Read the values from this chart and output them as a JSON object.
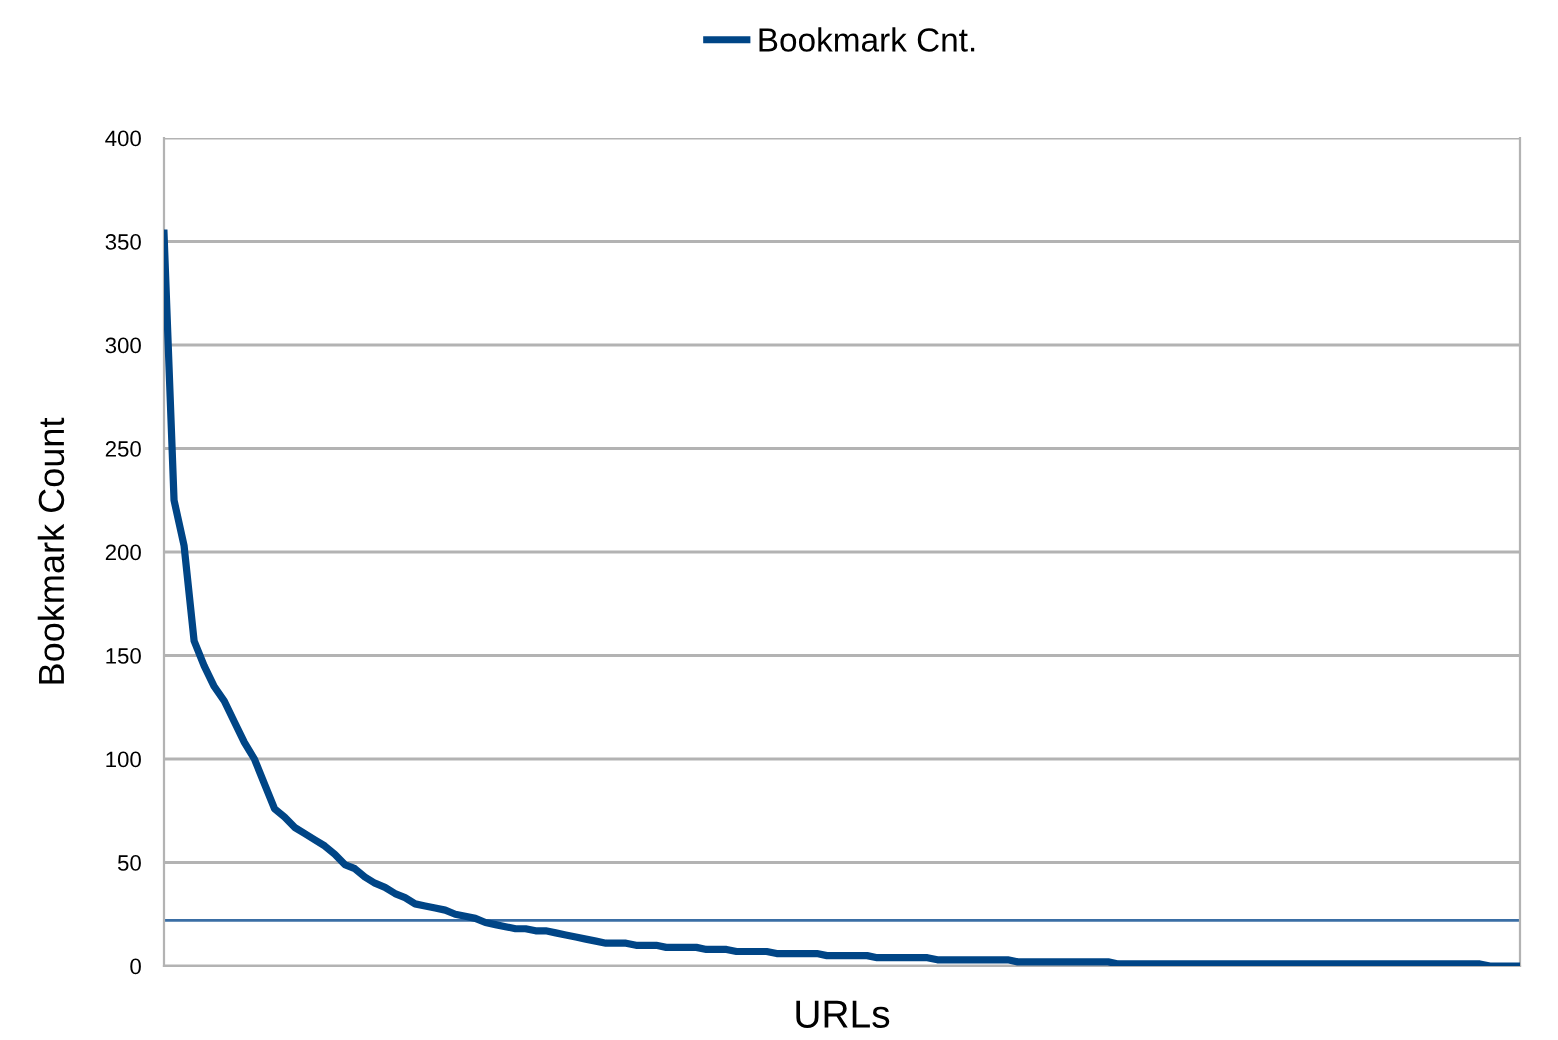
{
  "chart_data": {
    "type": "line",
    "xlabel": "URLs",
    "ylabel": "Bookmark Count",
    "categories": [
      null,
      null,
      null,
      null,
      null,
      null,
      null,
      null,
      null,
      null,
      null,
      null,
      null,
      null,
      null,
      null,
      null,
      null,
      null,
      null,
      null,
      null,
      null,
      null,
      null,
      null,
      null,
      null,
      null,
      null,
      null,
      null,
      null,
      null,
      null,
      null,
      null,
      null,
      null,
      null,
      null,
      null,
      null,
      null,
      null,
      null,
      null,
      null,
      null,
      null,
      null,
      null,
      null,
      null,
      null,
      null,
      null,
      null,
      null,
      null,
      null,
      null,
      null,
      null,
      null,
      null,
      null,
      null,
      null,
      null,
      null,
      null,
      null,
      null,
      null,
      null,
      null,
      null,
      null,
      null,
      null,
      null,
      null,
      null,
      null,
      null,
      null,
      null,
      null,
      null,
      null,
      null,
      null,
      null,
      null,
      null,
      null,
      null,
      null,
      null,
      null,
      null,
      null,
      null,
      null,
      null,
      null,
      null,
      null,
      null,
      null,
      null,
      null,
      null,
      null,
      null,
      null,
      null,
      null,
      null,
      null,
      null,
      null,
      null,
      null,
      null,
      null,
      null,
      null,
      null,
      null,
      null,
      null,
      null,
      null,
      null
    ],
    "series": [
      {
        "name": "Bookmark Cnt.",
        "color": "#004586",
        "values": [
          354,
          225,
          203,
          157,
          145,
          135,
          128,
          118,
          108,
          100,
          88,
          76,
          72,
          67,
          64,
          61,
          58,
          54,
          49,
          47,
          43,
          40,
          38,
          35,
          33,
          30,
          29,
          28,
          27,
          25,
          24,
          23,
          21,
          20,
          19,
          18,
          18,
          17,
          17,
          16,
          15,
          14,
          13,
          12,
          11,
          11,
          11,
          10,
          10,
          10,
          9,
          9,
          9,
          9,
          8,
          8,
          8,
          7,
          7,
          7,
          7,
          6,
          6,
          6,
          6,
          6,
          5,
          5,
          5,
          5,
          5,
          4,
          4,
          4,
          4,
          4,
          4,
          3,
          3,
          3,
          3,
          3,
          3,
          3,
          3,
          2,
          2,
          2,
          2,
          2,
          2,
          2,
          2,
          2,
          2,
          1,
          1,
          1,
          1,
          1,
          1,
          1,
          1,
          1,
          1,
          1,
          1,
          1,
          1,
          1,
          1,
          1,
          1,
          1,
          1,
          1,
          1,
          1,
          1,
          1,
          1,
          1,
          1,
          1,
          1,
          1,
          1,
          1,
          1,
          1,
          1,
          1,
          0,
          0,
          0,
          0
        ]
      }
    ],
    "ylim": [
      0,
      400
    ],
    "yticks": [
      0,
      50,
      100,
      150,
      200,
      250,
      300,
      350,
      400
    ],
    "ref_lines": [
      {
        "axis": "y",
        "value": 22,
        "color": "#3a6ea5"
      }
    ],
    "grid": "y",
    "legend": "top",
    "marker": "none",
    "line_style": "solid",
    "tick_labels": "y"
  }
}
